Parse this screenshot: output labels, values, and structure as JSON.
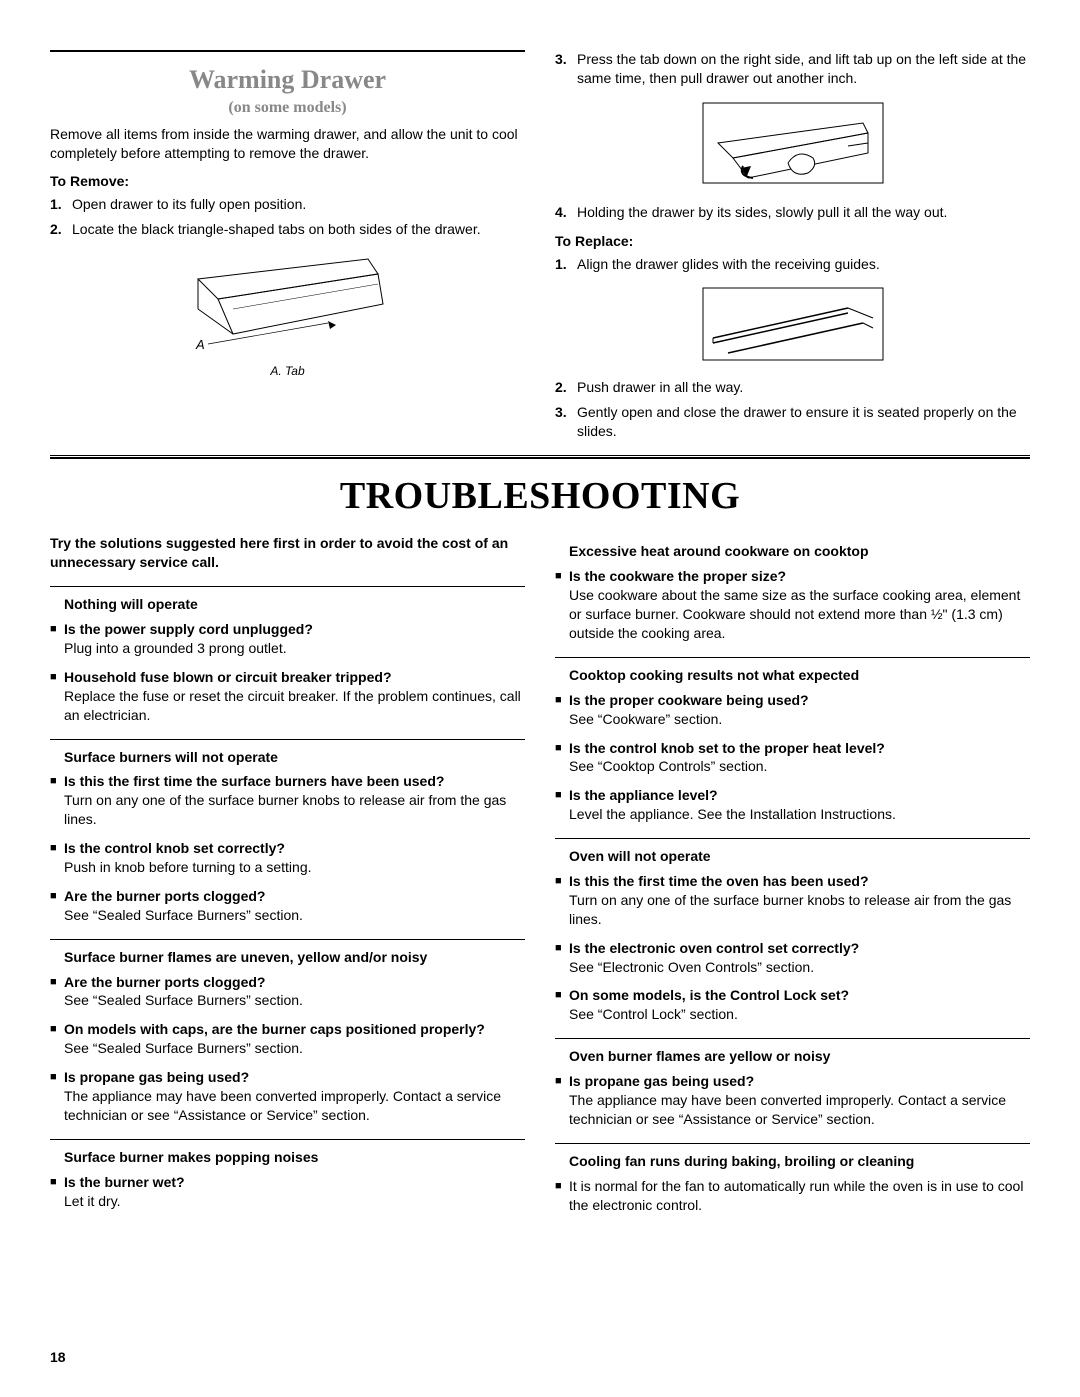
{
  "pageNumber": "18",
  "warmingDrawer": {
    "title": "Warming Drawer",
    "subtitle": "(on some models)",
    "intro": "Remove all items from inside the warming drawer, and allow the unit to cool completely before attempting to remove the drawer.",
    "toRemove": {
      "head": "To Remove:",
      "steps": [
        "Open drawer to its fully open position.",
        "Locate the black triangle-shaped tabs on both sides of the drawer."
      ],
      "figLabel": "A",
      "figCaption": "A. Tab"
    },
    "right": {
      "step3": "Press the tab down on the right side, and lift tab up on the left side at the same time, then pull drawer out another inch.",
      "step4": "Holding the drawer by its sides, slowly pull it all the way out."
    },
    "toReplace": {
      "head": "To Replace:",
      "step1": "Align the drawer glides with the receiving guides.",
      "step2": "Push drawer in all the way.",
      "step3": "Gently open and close the drawer to ensure it is seated properly on the slides."
    }
  },
  "troubleshooting": {
    "title": "TROUBLESHOOTING",
    "intro": "Try the solutions suggested here first in order to avoid the cost of an unnecessary service call.",
    "left": [
      {
        "head": "Nothing will operate",
        "items": [
          {
            "q": "Is the power supply cord unplugged?",
            "a": "Plug into a grounded 3 prong outlet."
          },
          {
            "q": "Household fuse blown or circuit breaker tripped?",
            "a": "Replace the fuse or reset the circuit breaker. If the problem continues, call an electrician."
          }
        ]
      },
      {
        "head": "Surface burners will not operate",
        "items": [
          {
            "q": "Is this the first time the surface burners have been used?",
            "a": "Turn on any one of the surface burner knobs to release air from the gas lines."
          },
          {
            "q": "Is the control knob set correctly?",
            "a": "Push in knob before turning to a setting."
          },
          {
            "q": "Are the burner ports clogged?",
            "a": "See “Sealed Surface Burners” section."
          }
        ]
      },
      {
        "head": "Surface burner flames are uneven, yellow and/or noisy",
        "items": [
          {
            "q": "Are the burner ports clogged?",
            "a": "See “Sealed Surface Burners” section."
          },
          {
            "q": "On models with caps, are the burner caps positioned properly?",
            "a": "See “Sealed Surface Burners” section."
          },
          {
            "q": "Is propane gas being used?",
            "a": "The appliance may have been converted improperly. Contact a service technician or see “Assistance or Service” section."
          }
        ]
      },
      {
        "head": "Surface burner makes popping noises",
        "items": [
          {
            "q": "Is the burner wet?",
            "a": "Let it dry."
          }
        ]
      }
    ],
    "right": [
      {
        "head": "Excessive heat around cookware on cooktop",
        "items": [
          {
            "q": "Is the cookware the proper size?",
            "a": "Use cookware about the same size as the surface cooking area, element or surface burner. Cookware should not extend more than ½\" (1.3 cm) outside the cooking area."
          }
        ]
      },
      {
        "head": "Cooktop cooking results not what expected",
        "items": [
          {
            "q": "Is the proper cookware being used?",
            "a": "See “Cookware” section."
          },
          {
            "q": "Is the control knob set to the proper heat level?",
            "a": "See “Cooktop Controls” section."
          },
          {
            "q": "Is the appliance level?",
            "a": "Level the appliance. See the Installation Instructions."
          }
        ]
      },
      {
        "head": "Oven will not operate",
        "items": [
          {
            "q": "Is this the first time the oven has been used?",
            "a": "Turn on any one of the surface burner knobs to release air from the gas lines."
          },
          {
            "q": "Is the electronic oven control set correctly?",
            "a": "See “Electronic Oven Controls” section."
          },
          {
            "q": "On some models, is the Control Lock set?",
            "a": "See “Control Lock” section."
          }
        ]
      },
      {
        "head": "Oven burner flames are yellow or noisy",
        "items": [
          {
            "q": "Is propane gas being used?",
            "a": "The appliance may have been converted improperly. Contact a service technician or see “Assistance or Service” section."
          }
        ]
      },
      {
        "head": "Cooling fan runs during baking, broiling or cleaning",
        "items": [
          {
            "q": "",
            "a": "It is normal for the fan to automatically run while the oven is in use to cool the electronic control."
          }
        ]
      }
    ]
  }
}
